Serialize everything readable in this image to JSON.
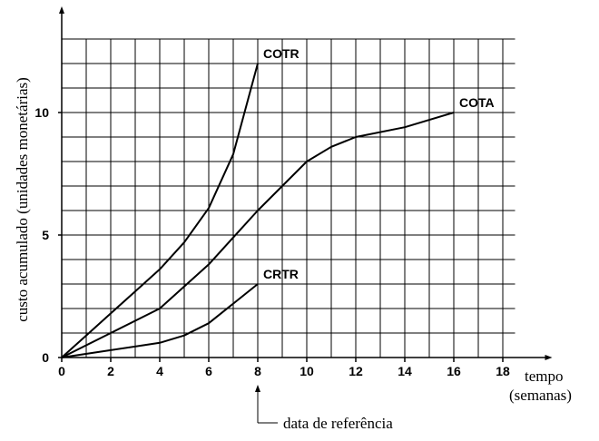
{
  "chart_data": {
    "type": "line",
    "ylabel": "custo acumulado (unidades monetárias)",
    "xlabel": [
      "tempo",
      "(semanas)"
    ],
    "xlim": [
      0,
      18.5
    ],
    "ylim": [
      0,
      13
    ],
    "xticks": [
      0,
      2,
      4,
      6,
      8,
      10,
      12,
      14,
      16,
      18
    ],
    "yticks": [
      0,
      5,
      10
    ],
    "grid": true,
    "minor_grid_step": 1,
    "series": [
      {
        "name": "COTR",
        "color": "#000000",
        "x": [
          0,
          1,
          2,
          3,
          4,
          5,
          6,
          7,
          8
        ],
        "values": [
          0,
          0.9,
          1.8,
          2.7,
          3.6,
          4.7,
          6.1,
          8.3,
          12
        ]
      },
      {
        "name": "COTA",
        "color": "#000000",
        "x": [
          0,
          2,
          4,
          6,
          8,
          10,
          11,
          12,
          14,
          16
        ],
        "values": [
          0,
          1,
          2,
          3.8,
          6,
          8,
          8.6,
          9,
          9.4,
          10
        ]
      },
      {
        "name": "CRTR",
        "color": "#000000",
        "x": [
          0,
          2,
          4,
          5,
          6,
          7,
          8
        ],
        "values": [
          0,
          0.3,
          0.6,
          0.9,
          1.4,
          2.2,
          3
        ]
      }
    ],
    "annotation": {
      "text": "data de referência",
      "x": 8
    }
  }
}
